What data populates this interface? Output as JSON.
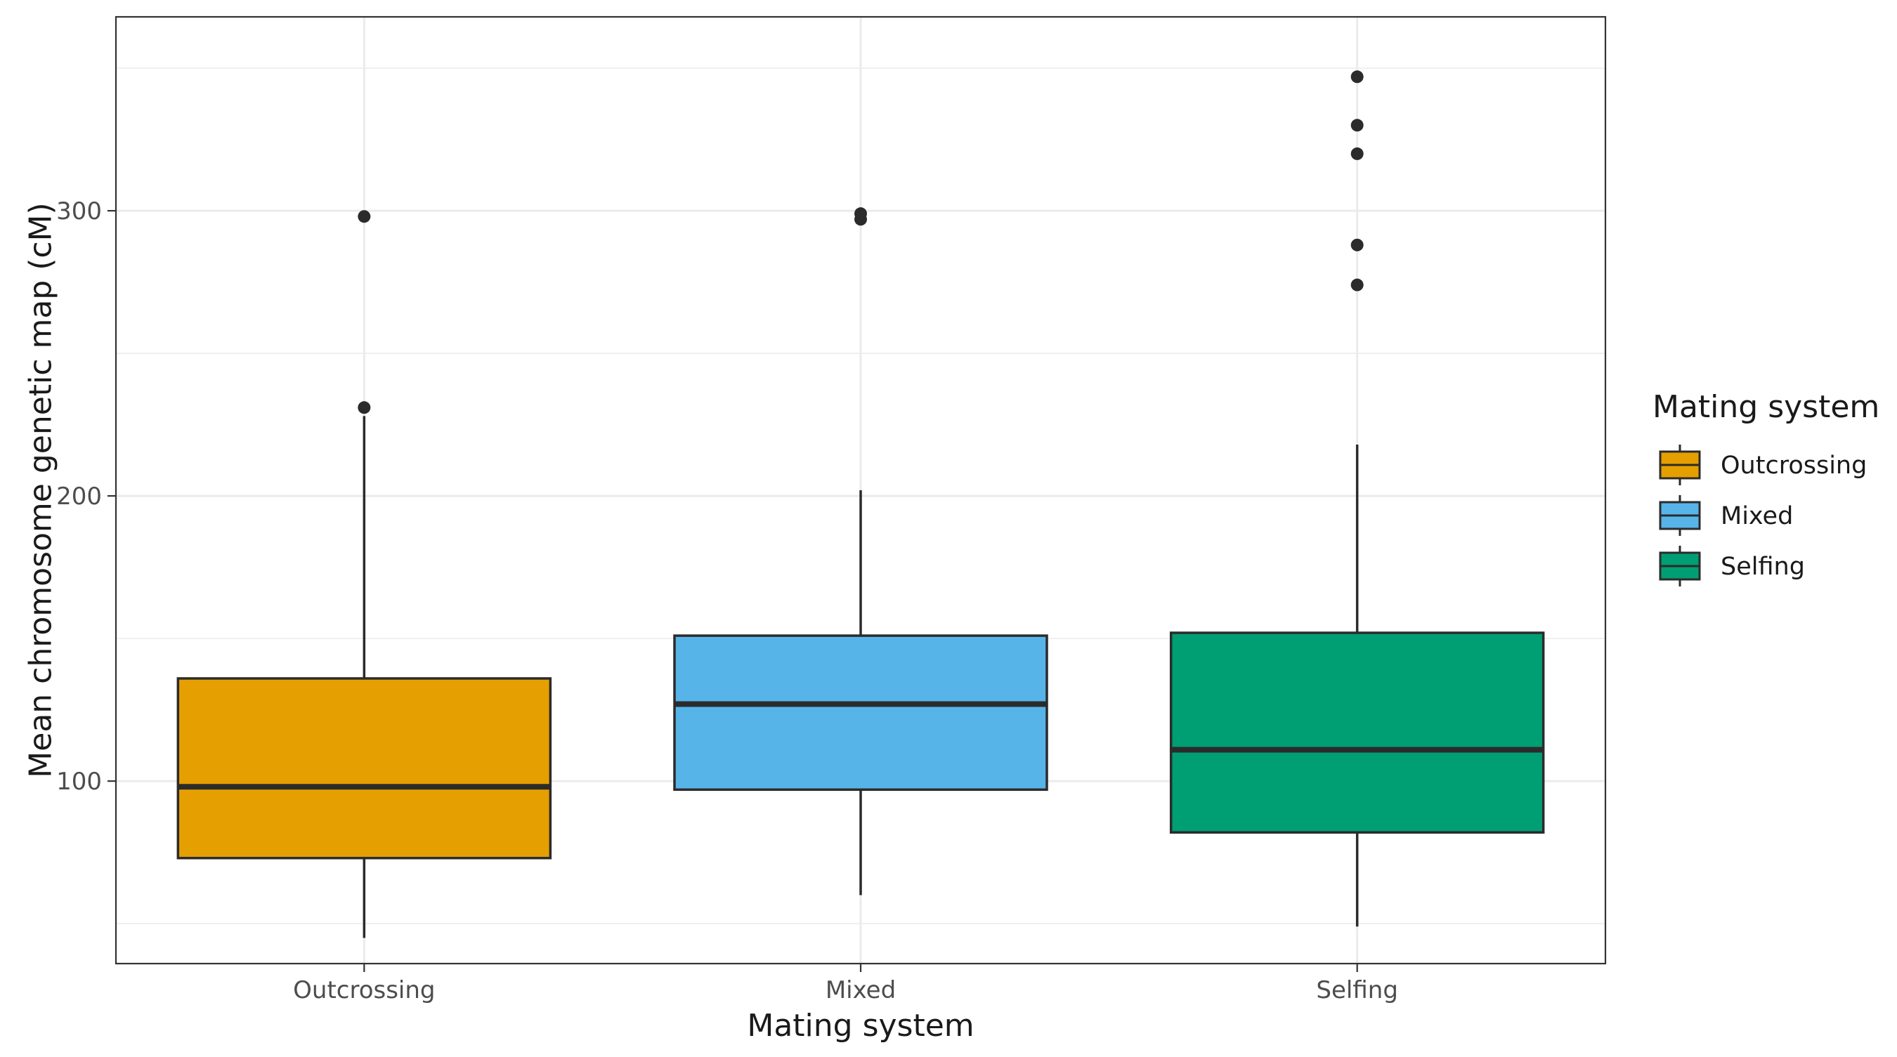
{
  "chart_data": {
    "type": "boxplot",
    "title": "",
    "xlabel": "Mating system",
    "ylabel": "Mean chromosome genetic map (cM)",
    "categories": [
      "Outcrossing",
      "Mixed",
      "Selfing"
    ],
    "ylim": [
      36,
      368
    ],
    "yticks": [
      100,
      200,
      300
    ],
    "grid": true,
    "legend": {
      "title": "Mating system",
      "placement": "right",
      "entries": [
        "Outcrossing",
        "Mixed",
        "Selfing"
      ]
    },
    "colors": {
      "Outcrossing": "#E69F00",
      "Mixed": "#56B4E9",
      "Selfing": "#009E73",
      "outline": "#2b2b2b",
      "grid": "#ebebeb",
      "panel_border": "#333333"
    },
    "boxes": [
      {
        "category": "Outcrossing",
        "whisker_low": 45,
        "q1": 73,
        "median": 98,
        "q3": 136,
        "whisker_high": 228,
        "outliers": [
          231,
          298
        ]
      },
      {
        "category": "Mixed",
        "whisker_low": 60,
        "q1": 97,
        "median": 127,
        "q3": 151,
        "whisker_high": 202,
        "outliers": [
          297,
          299
        ]
      },
      {
        "category": "Selfing",
        "whisker_low": 49,
        "q1": 82,
        "median": 111,
        "q3": 152,
        "whisker_high": 218,
        "outliers": [
          274,
          288,
          320,
          330,
          347
        ]
      }
    ]
  }
}
